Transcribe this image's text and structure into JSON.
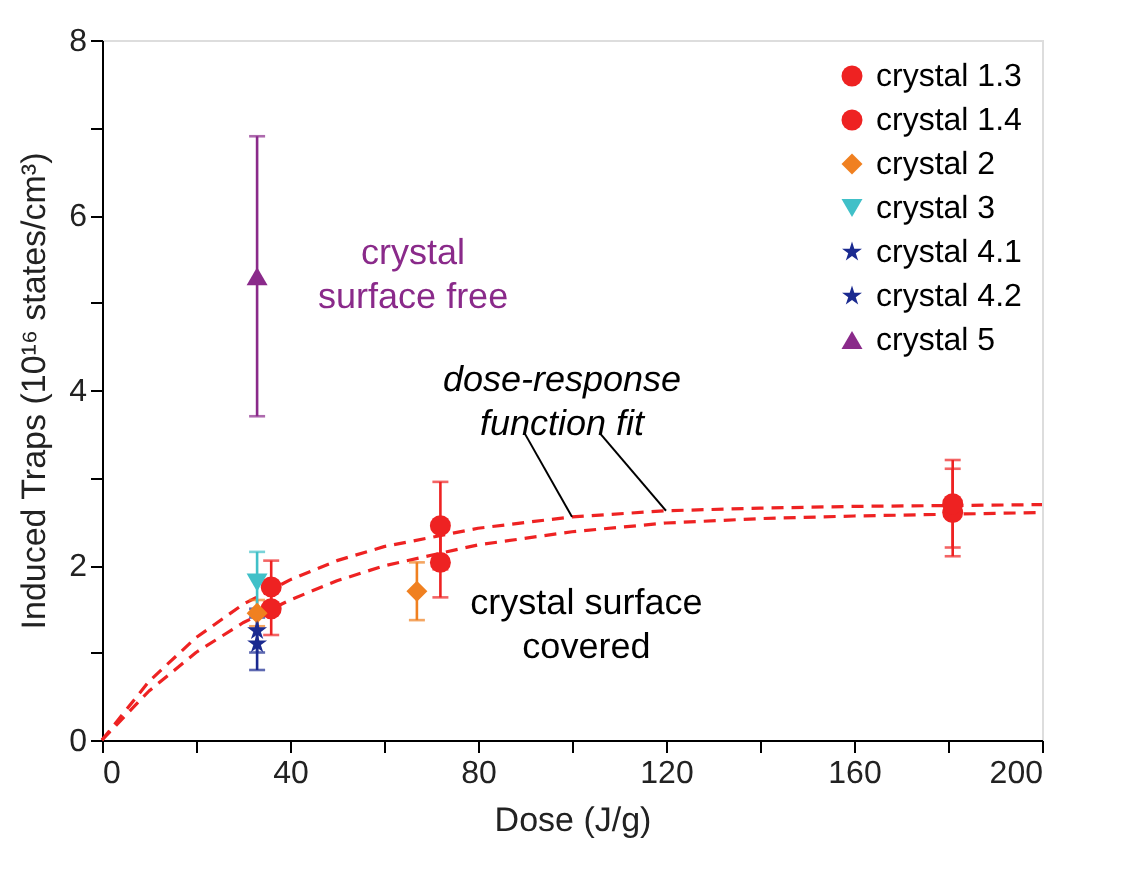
{
  "chart_data": {
    "type": "scatter",
    "xlabel": "Dose (J/g)",
    "ylabel": "Induced Traps (10¹⁶ states/cm³)",
    "xlim": [
      0,
      200
    ],
    "xticks": [
      0,
      {
        "value": 20,
        "label": null
      },
      40,
      {
        "value": 60,
        "label": null
      },
      80,
      {
        "value": 100,
        "label": null
      },
      120,
      {
        "value": 140,
        "label": null
      },
      160,
      {
        "value": 180,
        "label": null
      },
      200
    ],
    "ylim": [
      0,
      8
    ],
    "yticks": [
      0,
      {
        "value": 1,
        "label": null
      },
      2,
      {
        "value": 3,
        "label": null
      },
      4,
      {
        "value": 5,
        "label": null
      },
      6,
      {
        "value": 7,
        "label": null
      },
      8
    ],
    "legend": "top right",
    "series": [
      {
        "name": "crystal 1.3",
        "color": "#ee2222",
        "marker": "circle",
        "x": [
          36,
          72,
          181
        ],
        "values": [
          1.5,
          2.03,
          2.6
        ],
        "errors": [
          0.3,
          0.4,
          0.5
        ]
      },
      {
        "name": "crystal 1.4",
        "color": "#ee2222",
        "marker": "circle",
        "x": [
          36,
          72,
          181
        ],
        "values": [
          1.75,
          2.45,
          2.7
        ],
        "errors": [
          0.3,
          0.5,
          0.5
        ]
      },
      {
        "name": "crystal 2",
        "color": "#f08020",
        "marker": "diamond",
        "x": [
          33,
          67
        ],
        "values": [
          1.45,
          1.7
        ],
        "errors": [
          0.15,
          0.33
        ]
      },
      {
        "name": "crystal 3",
        "color": "#40c0c8",
        "marker": "triangle-down",
        "x": [
          33
        ],
        "values": [
          1.8
        ],
        "errors": [
          0.35
        ]
      },
      {
        "name": "crystal 4.1",
        "color": "#1a2a90",
        "marker": "star",
        "x": [
          33
        ],
        "values": [
          1.25
        ],
        "errors": [
          0.25
        ]
      },
      {
        "name": "crystal 4.2",
        "color": "#1a2a90",
        "marker": "star",
        "x": [
          33
        ],
        "values": [
          1.1
        ],
        "errors": [
          0.3
        ]
      },
      {
        "name": "crystal 5",
        "color": "#8a2a8a",
        "marker": "triangle",
        "x": [
          33
        ],
        "values": [
          5.3
        ],
        "errors": [
          [
            3.7,
            6.9
          ]
        ]
      },
      {
        "type": "line",
        "line_style": "dashed",
        "color": "#ee2222",
        "x": [
          0,
          10,
          20,
          30,
          40,
          50,
          60,
          80,
          100,
          120,
          140,
          160,
          180,
          200
        ],
        "values": [
          0,
          0.67,
          1.17,
          1.55,
          1.83,
          2.05,
          2.21,
          2.42,
          2.55,
          2.62,
          2.65,
          2.67,
          2.68,
          2.69
        ]
      },
      {
        "type": "line",
        "line_style": "dashed",
        "color": "#ee2222",
        "x": [
          0,
          10,
          20,
          30,
          40,
          50,
          60,
          80,
          100,
          120,
          140,
          160,
          180,
          200
        ],
        "values": [
          0,
          0.56,
          1.0,
          1.34,
          1.6,
          1.82,
          1.99,
          2.23,
          2.38,
          2.48,
          2.53,
          2.56,
          2.58,
          2.6
        ]
      }
    ],
    "annotations": [
      {
        "text": "crystal\nsurface free",
        "x": 33,
        "y": 5.3
      },
      {
        "text": "dose-response\nfunction fit",
        "x": 100,
        "y": 2.55
      },
      {
        "text": "crystal surface\ncovered",
        "x": 72,
        "y": 2.03
      }
    ]
  }
}
